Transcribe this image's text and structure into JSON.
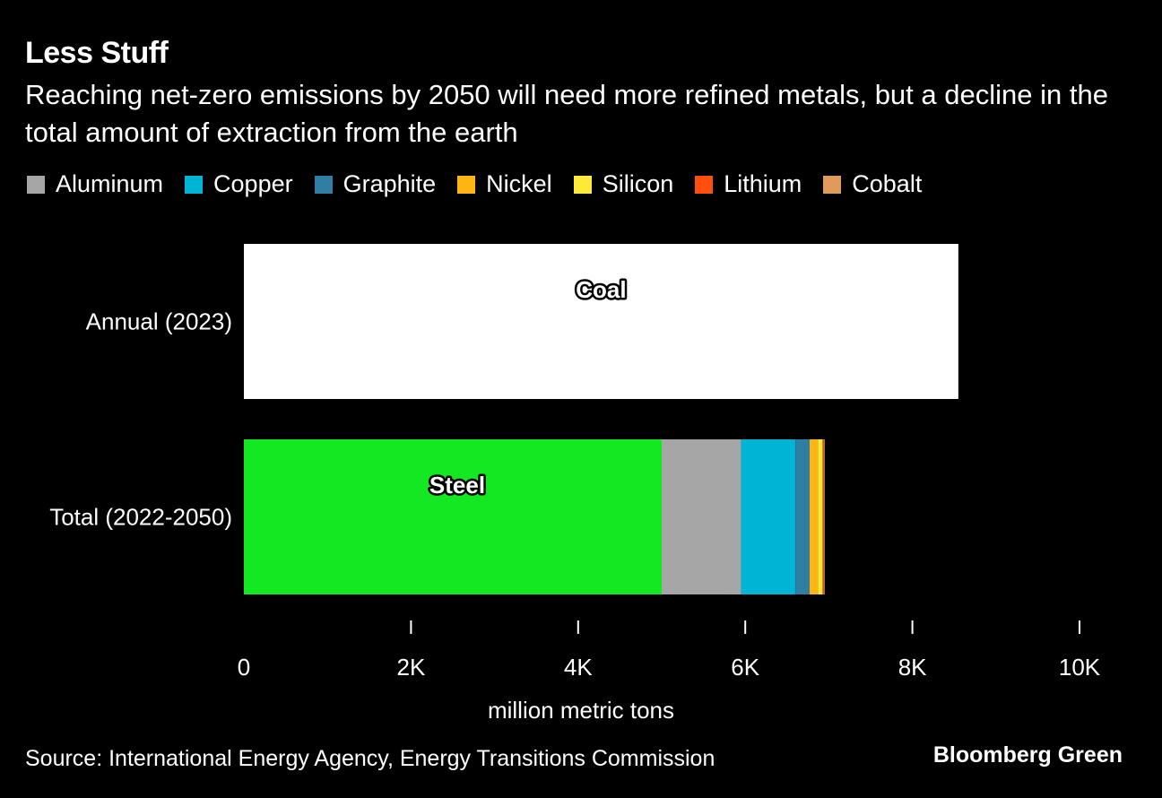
{
  "title": "Less Stuff",
  "subtitle": "Reaching net-zero emissions by 2050 will need more refined metals, but a decline in the total amount of extraction from the earth",
  "source": "Source: International Energy Agency, Energy Transitions Commission",
  "brand": "Bloomberg Green",
  "legend": [
    {
      "label": "Aluminum",
      "color": "#a6a6a6"
    },
    {
      "label": "Copper",
      "color": "#00b4d6"
    },
    {
      "label": "Graphite",
      "color": "#2f7ea3"
    },
    {
      "label": "Nickel",
      "color": "#fdb515"
    },
    {
      "label": "Silicon",
      "color": "#fde93a"
    },
    {
      "label": "Lithium",
      "color": "#ff4f0f"
    },
    {
      "label": "Cobalt",
      "color": "#e09b5c"
    }
  ],
  "chart_data": {
    "type": "bar",
    "orientation": "horizontal",
    "stacked": true,
    "categories": [
      "Annual (2023)",
      "Total (2022-2050)"
    ],
    "series": [
      {
        "name": "Coal",
        "color": "#ffffff",
        "label_on_bar": true,
        "values": [
          8550,
          0
        ]
      },
      {
        "name": "Steel",
        "color": "#14e823",
        "label_on_bar": true,
        "values": [
          0,
          5000
        ]
      },
      {
        "name": "Aluminum",
        "color": "#a6a6a6",
        "values": [
          0,
          950
        ]
      },
      {
        "name": "Copper",
        "color": "#00b4d6",
        "values": [
          0,
          650
        ]
      },
      {
        "name": "Graphite",
        "color": "#2f7ea3",
        "values": [
          0,
          170
        ]
      },
      {
        "name": "Nickel",
        "color": "#fdb515",
        "values": [
          0,
          100
        ]
      },
      {
        "name": "Silicon",
        "color": "#fde93a",
        "values": [
          0,
          55
        ]
      },
      {
        "name": "Lithium",
        "color": "#ff4f0f",
        "values": [
          0,
          15
        ]
      },
      {
        "name": "Cobalt",
        "color": "#e09b5c",
        "values": [
          0,
          10
        ]
      }
    ],
    "xlim": [
      0,
      10000
    ],
    "xticks": [
      0,
      2000,
      4000,
      6000,
      8000,
      10000
    ],
    "xtick_labels": [
      "0",
      "2K",
      "4K",
      "6K",
      "8K",
      "10K"
    ],
    "xlabel": "million metric tons"
  }
}
